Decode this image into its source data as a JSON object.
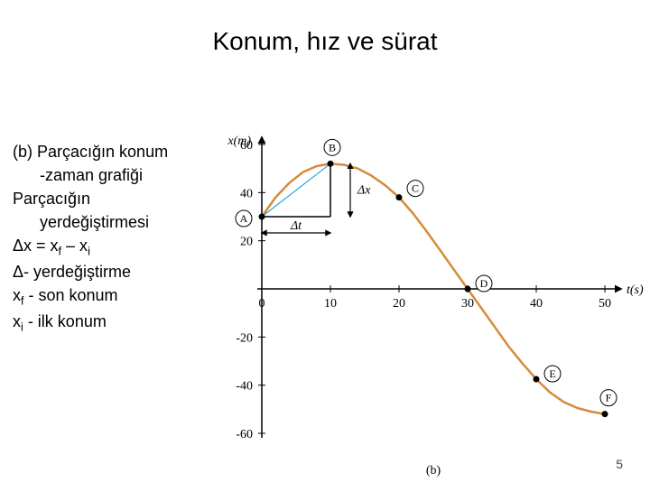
{
  "title": "Konum, hız ve sürat",
  "slide_number": "5",
  "description": {
    "line1": "(b) Parçacığın konum",
    "line2": "-zaman grafiği",
    "line3": "Parçacığın",
    "line4": "yerdeğiştirmesi",
    "line5a": "Δx = x",
    "line5b": "f",
    "line5c": " – x",
    "line5d": "i",
    "line6": "Δ- yerdeğiştirme",
    "line7a": "x",
    "line7b": "f",
    "line7c": " - son konum",
    "line8a": "x",
    "line8b": "i",
    "line8c": " - ilk konum"
  },
  "chart": {
    "type": "line",
    "xlabel": "t(s)",
    "ylabel": "x(m)",
    "caption": "(b)",
    "x_ticks": [
      0,
      10,
      20,
      30,
      40,
      50
    ],
    "y_ticks": [
      -60,
      -40,
      -20,
      0,
      20,
      40,
      60
    ],
    "xlim": [
      0,
      50
    ],
    "ylim": [
      -60,
      60
    ],
    "curve_color": "#d68a3a",
    "curve_width": 2.5,
    "secant_color": "#2aa8d8",
    "delta_box_color": "#000000",
    "axis_color": "#000000",
    "background": "#ffffff",
    "label_fontsize": 14,
    "tick_fontsize": 14,
    "points": [
      {
        "id": "A",
        "t": 0,
        "x": 30
      },
      {
        "id": "B",
        "t": 10,
        "x": 52
      },
      {
        "id": "C",
        "t": 20,
        "x": 38
      },
      {
        "id": "D",
        "t": 30,
        "x": 0
      },
      {
        "id": "E",
        "t": 40,
        "x": -37.5
      },
      {
        "id": "F",
        "t": 50,
        "x": -52
      }
    ],
    "curve_samples": [
      {
        "t": 0,
        "x": 30
      },
      {
        "t": 2,
        "x": 38
      },
      {
        "t": 4,
        "x": 44
      },
      {
        "t": 6,
        "x": 48.5
      },
      {
        "t": 8,
        "x": 51
      },
      {
        "t": 10,
        "x": 52
      },
      {
        "t": 12,
        "x": 51.5
      },
      {
        "t": 14,
        "x": 50
      },
      {
        "t": 16,
        "x": 47
      },
      {
        "t": 18,
        "x": 43
      },
      {
        "t": 20,
        "x": 38
      },
      {
        "t": 22,
        "x": 31.5
      },
      {
        "t": 24,
        "x": 24
      },
      {
        "t": 26,
        "x": 16
      },
      {
        "t": 28,
        "x": 8
      },
      {
        "t": 30,
        "x": 0
      },
      {
        "t": 32,
        "x": -8
      },
      {
        "t": 34,
        "x": -16
      },
      {
        "t": 36,
        "x": -24
      },
      {
        "t": 38,
        "x": -31
      },
      {
        "t": 40,
        "x": -37.5
      },
      {
        "t": 42,
        "x": -43
      },
      {
        "t": 44,
        "x": -47
      },
      {
        "t": 46,
        "x": -49.5
      },
      {
        "t": 48,
        "x": -51
      },
      {
        "t": 50,
        "x": -52
      }
    ],
    "delta_x_label": "Δx",
    "delta_t_label": "Δt"
  }
}
